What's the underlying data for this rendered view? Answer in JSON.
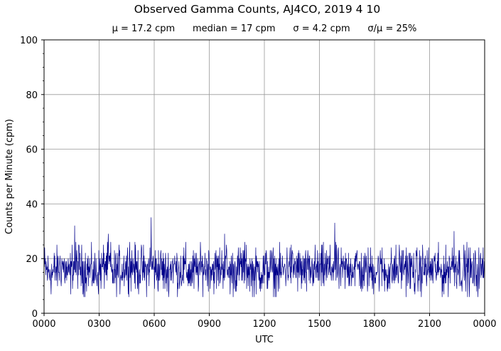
{
  "chart_data": {
    "type": "line",
    "title": "Observed Gamma Counts, AJ4CO, 2019 4 10",
    "subtitle": "μ = 17.2 cpm      median = 17 cpm      σ = 4.2 cpm      σ/μ = 25%",
    "xlabel": "UTC",
    "ylabel": "Counts per Minute (cpm)",
    "xlim": [
      0,
      1440
    ],
    "ylim": [
      0,
      100
    ],
    "x_ticks": [
      0,
      180,
      360,
      540,
      720,
      900,
      1080,
      1260,
      1440
    ],
    "x_tick_labels": [
      "0000",
      "0300",
      "0600",
      "0900",
      "1200",
      "1500",
      "1800",
      "2100",
      "0000"
    ],
    "y_ticks": [
      0,
      20,
      40,
      60,
      80,
      100
    ],
    "y_tick_labels": [
      "0",
      "20",
      "40",
      "60",
      "80",
      "100"
    ],
    "y_minor_step": 5,
    "grid": true,
    "legend": "none",
    "colors": {
      "series": "#00008b",
      "grid": "#999999"
    },
    "series": [
      {
        "x": [
          0,
          20,
          40,
          60,
          80,
          90,
          100,
          120,
          140,
          160,
          180,
          200,
          210,
          220,
          240,
          260,
          280,
          300,
          320,
          340,
          350,
          360,
          380,
          400,
          420,
          440,
          460,
          480,
          500,
          520,
          540,
          560,
          580,
          590,
          600,
          620,
          640,
          660,
          680,
          700,
          720,
          740,
          760,
          780,
          800,
          820,
          840,
          860,
          880,
          900,
          920,
          940,
          950,
          960,
          980,
          1000,
          1020,
          1040,
          1060,
          1080,
          1100,
          1120,
          1140,
          1160,
          1180,
          1200,
          1220,
          1240,
          1260,
          1280,
          1300,
          1320,
          1340,
          1360,
          1380,
          1400,
          1420,
          1440
        ],
        "values": [
          18,
          16,
          17,
          19,
          15,
          17,
          32,
          17,
          18,
          16,
          17,
          19,
          29,
          16,
          17,
          18,
          26,
          17,
          18,
          16,
          35,
          17,
          18,
          16,
          19,
          17,
          18,
          16,
          17,
          18,
          19,
          17,
          18,
          29,
          16,
          17,
          18,
          19,
          16,
          17,
          17,
          18,
          16,
          17,
          19,
          18,
          17,
          16,
          18,
          17,
          18,
          17,
          33,
          16,
          17,
          18,
          19,
          16,
          17,
          17,
          18,
          16,
          17,
          18,
          19,
          17,
          16,
          18,
          17,
          18,
          16,
          17,
          30,
          17,
          18,
          16,
          17,
          18
        ]
      }
    ]
  }
}
